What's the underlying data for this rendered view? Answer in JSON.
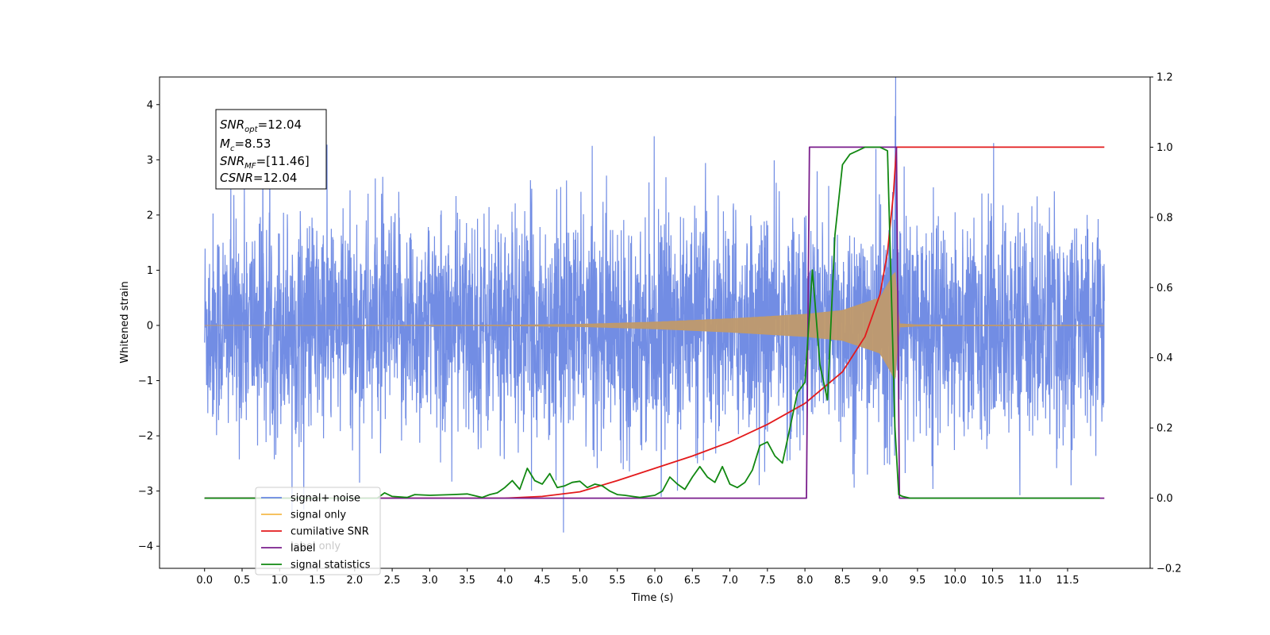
{
  "chart_data": {
    "type": "line",
    "xlabel": "Time (s)",
    "ylabel": "Whitened strain",
    "xlim": [
      -0.6,
      12.6
    ],
    "ylim": [
      -4.4,
      4.5
    ],
    "y2lim": [
      -0.2,
      1.2
    ],
    "xticks": [
      0.0,
      0.5,
      1.0,
      1.5,
      2.0,
      2.5,
      3.0,
      3.5,
      4.0,
      4.5,
      5.0,
      5.5,
      6.0,
      6.5,
      7.0,
      7.5,
      8.0,
      8.5,
      9.0,
      9.5,
      10.0,
      10.5,
      11.0,
      11.5
    ],
    "xtick_labels": [
      "0.0",
      "0.5",
      "1.0",
      "1.5",
      "2.0",
      "2.5",
      "3.0",
      "3.5",
      "4.0",
      "4.5",
      "5.0",
      "5.5",
      "6.0",
      "6.5",
      "7.0",
      "7.5",
      "8.0",
      "8.5",
      "9.0",
      "9.5",
      "10.0",
      "10.5",
      "11.0",
      "11.5"
    ],
    "yticks": [
      -4,
      -3,
      -2,
      -1,
      0,
      1,
      2,
      3,
      4
    ],
    "ytick_labels": [
      "−4",
      "−3",
      "−2",
      "−1",
      "0",
      "1",
      "2",
      "3",
      "4"
    ],
    "y2ticks": [
      -0.2,
      0.0,
      0.2,
      0.4,
      0.6,
      0.8,
      1.0,
      1.2
    ],
    "y2tick_labels": [
      "−0.2",
      "0.0",
      "0.2",
      "0.4",
      "0.6",
      "0.8",
      "1.0",
      "1.2"
    ],
    "annotation": {
      "lines": [
        {
          "base": "SNR",
          "sub": "opt",
          "rest": "=12.04"
        },
        {
          "base": "M",
          "sub": "c",
          "rest": "=8.53"
        },
        {
          "base": "SNR",
          "sub": "MF",
          "rest": "=[11.46]"
        },
        {
          "base": "CSNR",
          "sub": "",
          "rest": "=12.04"
        }
      ]
    },
    "legend_position": "lower-left",
    "legend": [
      {
        "name": "signal+ noise",
        "color": "#6a87e3"
      },
      {
        "name": "signal only",
        "color": "#f5b94a"
      },
      {
        "name": "cumilative SNR",
        "color": "#e31a1c"
      },
      {
        "name": "label",
        "color": "#7a1e8c"
      },
      {
        "name": "signal statistics",
        "color": "#118811"
      }
    ],
    "legend_background_text": [
      "label only"
    ],
    "series": [
      {
        "name": "signal+ noise",
        "axis": "left",
        "color": "#6a87e3",
        "description_x_range": [
          0.0,
          11.99
        ],
        "noise_sigma": 1.0,
        "peak_max": 4.13,
        "peak_min": -3.95
      },
      {
        "name": "signal only",
        "axis": "left",
        "color": "#c09a6b",
        "chirp_start": 4.0,
        "merger_time": 9.22,
        "envelope_points": [
          [
            0.0,
            0.0
          ],
          [
            4.0,
            0.005
          ],
          [
            5.0,
            0.02
          ],
          [
            6.0,
            0.06
          ],
          [
            7.0,
            0.12
          ],
          [
            8.0,
            0.2
          ],
          [
            8.5,
            0.27
          ],
          [
            9.0,
            0.5
          ],
          [
            9.15,
            0.85
          ],
          [
            9.2,
            1.0
          ],
          [
            9.25,
            0.03
          ],
          [
            9.5,
            0.01
          ],
          [
            11.99,
            0.0
          ]
        ]
      },
      {
        "name": "cumilative SNR",
        "axis": "right",
        "color": "#e31a1c",
        "x": [
          0.0,
          4.0,
          4.5,
          5.0,
          5.5,
          6.0,
          6.5,
          7.0,
          7.5,
          8.0,
          8.5,
          8.8,
          9.0,
          9.1,
          9.18,
          9.22,
          11.99
        ],
        "y": [
          0.0,
          0.0,
          0.005,
          0.018,
          0.05,
          0.085,
          0.12,
          0.16,
          0.21,
          0.27,
          0.36,
          0.46,
          0.58,
          0.7,
          0.87,
          1.0,
          1.0
        ]
      },
      {
        "name": "label",
        "axis": "right",
        "color": "#7a1e8c",
        "x": [
          0.0,
          8.02,
          8.06,
          9.22,
          9.26,
          11.99
        ],
        "y": [
          0.0,
          0.0,
          1.0,
          1.0,
          0.0,
          0.0
        ]
      },
      {
        "name": "signal statistics",
        "axis": "right",
        "color": "#118811",
        "x": [
          0.0,
          2.3,
          2.4,
          2.5,
          2.7,
          2.8,
          3.0,
          3.3,
          3.5,
          3.7,
          3.8,
          3.9,
          4.0,
          4.1,
          4.2,
          4.3,
          4.4,
          4.5,
          4.6,
          4.7,
          4.8,
          4.9,
          5.0,
          5.1,
          5.2,
          5.3,
          5.4,
          5.5,
          5.6,
          5.7,
          5.8,
          6.0,
          6.1,
          6.2,
          6.3,
          6.4,
          6.5,
          6.6,
          6.7,
          6.8,
          6.9,
          7.0,
          7.1,
          7.2,
          7.3,
          7.4,
          7.5,
          7.6,
          7.7,
          7.8,
          7.9,
          8.0,
          8.1,
          8.2,
          8.3,
          8.4,
          8.5,
          8.6,
          8.7,
          8.8,
          9.0,
          9.1,
          9.15,
          9.2,
          9.25,
          9.3,
          9.4,
          11.93
        ],
        "y": [
          0.0,
          0.0,
          0.015,
          0.005,
          0.002,
          0.01,
          0.008,
          0.01,
          0.012,
          0.002,
          0.01,
          0.015,
          0.03,
          0.05,
          0.025,
          0.085,
          0.05,
          0.04,
          0.07,
          0.03,
          0.035,
          0.045,
          0.048,
          0.03,
          0.04,
          0.035,
          0.02,
          0.01,
          0.008,
          0.005,
          0.002,
          0.008,
          0.02,
          0.06,
          0.04,
          0.025,
          0.06,
          0.09,
          0.06,
          0.045,
          0.09,
          0.04,
          0.03,
          0.045,
          0.08,
          0.15,
          0.16,
          0.12,
          0.1,
          0.2,
          0.3,
          0.33,
          0.65,
          0.38,
          0.28,
          0.75,
          0.95,
          0.98,
          0.99,
          1.0,
          1.0,
          0.99,
          0.6,
          0.2,
          0.01,
          0.005,
          0.0,
          0.0
        ]
      }
    ]
  }
}
